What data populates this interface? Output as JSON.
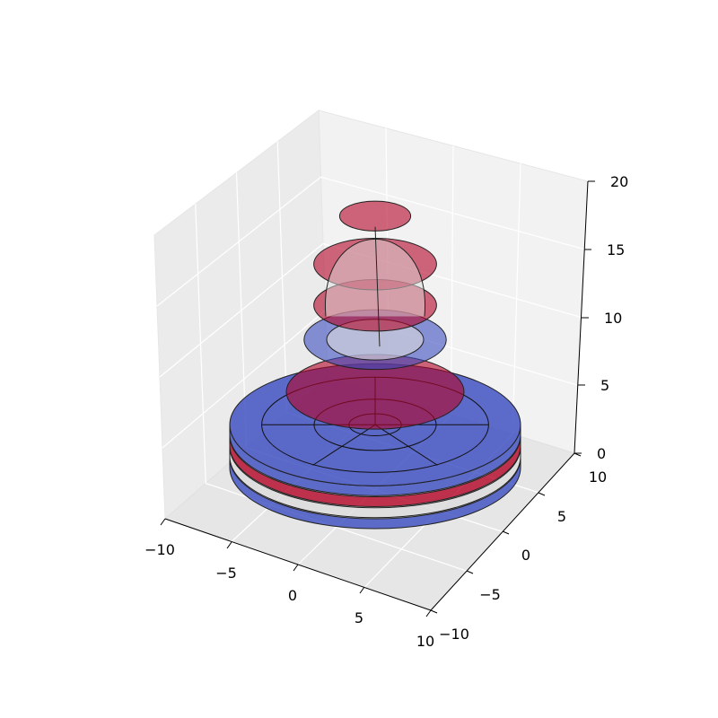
{
  "chart_data": {
    "type": "3d-surface",
    "title": "",
    "xlabel": "",
    "ylabel": "",
    "zlabel": "",
    "xlim": [
      -10,
      10
    ],
    "ylim": [
      -10,
      10
    ],
    "zlim": [
      0,
      20
    ],
    "x_ticks": [
      "−10",
      "−5",
      "0",
      "5",
      "10"
    ],
    "y_ticks": [
      "−10",
      "−5",
      "0",
      "5",
      "10"
    ],
    "z_ticks": [
      "0",
      "5",
      "10",
      "15",
      "20"
    ],
    "grid": true,
    "colormap": "coolwarm",
    "colors": {
      "red": "#b40426",
      "blue": "#3b4cc0",
      "light": "#dddcdc"
    },
    "surface": [
      {
        "name": "base-ring-bottom",
        "radius": 9,
        "z": 0.4,
        "fill": "#3b4cc0"
      },
      {
        "name": "base-ring-light",
        "radius": 9,
        "z": 1.2,
        "fill": "#dddcdc"
      },
      {
        "name": "base-ring-red",
        "radius": 9,
        "z": 2.0,
        "fill": "#b40426"
      },
      {
        "name": "base-disc",
        "radius": 9,
        "z": 2.8,
        "fill": "#3b4cc0"
      },
      {
        "name": "lower-red-ring",
        "radius": 5.5,
        "z": 5.2,
        "fill": "#b40426"
      },
      {
        "name": "blue-collar",
        "radius": 4.4,
        "z": 9.0,
        "fill": "#3b4cc0"
      },
      {
        "name": "light-inner",
        "radius": 3.0,
        "z": 9.0,
        "fill": "#dddcdc"
      },
      {
        "name": "red-ring-mid",
        "radius": 3.8,
        "z": 11.5,
        "fill": "#b40426"
      },
      {
        "name": "red-ring-upper",
        "radius": 3.8,
        "z": 14.5,
        "fill": "#b40426"
      },
      {
        "name": "top-cap",
        "radius": 2.2,
        "z": 18.0,
        "fill": "#b40426"
      }
    ]
  }
}
